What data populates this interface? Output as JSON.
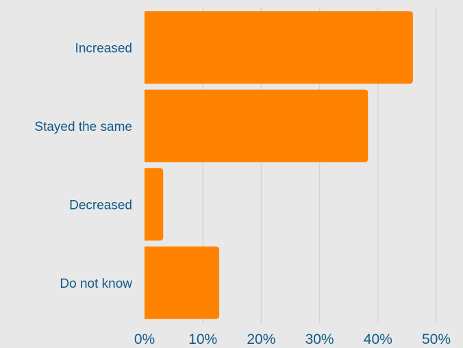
{
  "chart_data": {
    "type": "bar",
    "orientation": "horizontal",
    "categories": [
      "Increased",
      "Stayed the same",
      "Decreased",
      "Do not know"
    ],
    "values": [
      46,
      38.3,
      3.2,
      12.8
    ],
    "unit": "%",
    "xlim": [
      0,
      50
    ],
    "ticks": [
      0,
      10,
      20,
      30,
      40,
      50
    ],
    "tick_labels": [
      "0%",
      "10%",
      "20%",
      "30%",
      "40%",
      "50%"
    ],
    "title": "",
    "xlabel": "",
    "ylabel": "",
    "grid": true,
    "bar_color": "#ff8300",
    "label_color": "#0f5a8a",
    "background": "#e8e8e8"
  }
}
